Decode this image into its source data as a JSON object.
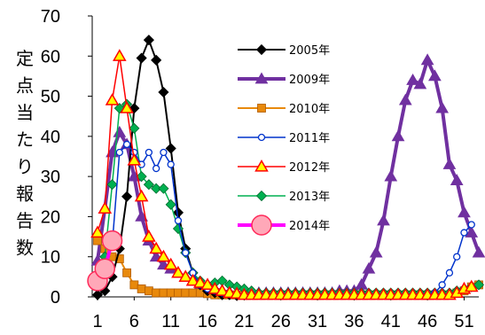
{
  "chart_data": {
    "type": "line",
    "title": "",
    "xlabel": "",
    "ylabel": "定点当たり報告数",
    "xlim": [
      1,
      53
    ],
    "ylim": [
      0,
      70
    ],
    "x_ticks": [
      1,
      6,
      11,
      16,
      21,
      26,
      31,
      36,
      41,
      46,
      51
    ],
    "y_ticks": [
      0,
      10,
      20,
      30,
      40,
      50,
      60,
      70
    ],
    "grid": false,
    "legend_position": "top-right",
    "series": [
      {
        "name": "2005年",
        "color": "#000000",
        "marker": "diamond",
        "line_width": 2,
        "x": [
          1,
          2,
          3,
          4,
          5,
          6,
          7,
          8,
          9,
          10,
          11,
          12,
          13,
          14,
          15,
          16,
          17,
          18,
          19,
          20
        ],
        "y": [
          0.5,
          1.5,
          5,
          12,
          25,
          47,
          59.5,
          64,
          59,
          51,
          37,
          21,
          12,
          6,
          3,
          1.5,
          1,
          0.5,
          0.5,
          0.3
        ]
      },
      {
        "name": "2009年",
        "color": "#7030a0",
        "marker": "triangle",
        "line_width": 4,
        "x": [
          1,
          2,
          3,
          4,
          5,
          6,
          7,
          8,
          9,
          10,
          11,
          12,
          13,
          14,
          15,
          16,
          17,
          18,
          19,
          20,
          21,
          22,
          23,
          24,
          25,
          26,
          27,
          28,
          29,
          30,
          31,
          32,
          33,
          34,
          35,
          36,
          37,
          38,
          39,
          40,
          41,
          42,
          43,
          44,
          45,
          46,
          47,
          48,
          49,
          50,
          51,
          52,
          53
        ],
        "y": [
          9,
          22,
          36,
          41,
          38,
          30,
          20,
          14,
          10,
          8,
          7,
          6,
          5,
          4,
          3,
          2.5,
          2,
          1.5,
          1.2,
          1,
          1,
          1,
          1,
          1,
          1,
          1,
          1,
          1,
          1,
          1,
          1,
          1,
          1,
          1.5,
          1.5,
          1.5,
          3,
          7,
          11,
          19,
          30,
          40,
          49,
          54,
          53,
          59,
          55,
          47,
          33,
          29,
          21,
          16,
          11
        ]
      },
      {
        "name": "2010年",
        "color": "#e8890c",
        "marker": "square",
        "line_width": 2,
        "x": [
          1,
          2,
          3,
          4,
          5,
          6,
          7,
          8,
          9,
          10,
          11,
          12,
          13,
          14,
          15,
          16,
          17,
          18,
          19,
          20,
          21,
          22,
          23,
          24,
          25,
          26,
          27,
          28,
          29,
          30,
          31,
          32,
          33,
          34,
          35,
          36,
          37,
          38,
          39,
          40,
          41,
          42,
          43,
          44,
          45,
          46,
          47,
          48,
          49,
          50,
          51,
          52,
          53
        ],
        "y": [
          14,
          12,
          10,
          9.5,
          6,
          3,
          2,
          1.5,
          1,
          1,
          1,
          1,
          1,
          1,
          1,
          0.8,
          0.5,
          0.5,
          0.5,
          0.5,
          0.5,
          0.5,
          0.5,
          0.5,
          0.5,
          0.5,
          0.5,
          0.5,
          0.5,
          0.5,
          0.5,
          0.5,
          0.5,
          0.5,
          0.5,
          0.5,
          0.5,
          0.5,
          0.5,
          0.5,
          0.5,
          0.5,
          0.5,
          0.5,
          0.5,
          0.5,
          0.5,
          0.5,
          0.5,
          1,
          1.5,
          2.5,
          3
        ]
      },
      {
        "name": "2011年",
        "color": "#0033cc",
        "marker": "circle",
        "line_width": 1.5,
        "x": [
          1,
          2,
          3,
          4,
          5,
          6,
          7,
          8,
          9,
          10,
          11,
          12,
          13,
          14,
          15,
          16,
          17,
          18,
          19,
          20,
          21,
          22,
          23,
          24,
          25,
          26,
          27,
          28,
          29,
          30,
          31,
          32,
          33,
          34,
          35,
          36,
          37,
          38,
          39,
          40,
          41,
          42,
          43,
          44,
          45,
          46,
          47,
          48,
          49,
          50,
          51,
          52,
          53
        ],
        "y": [
          3,
          7,
          13,
          36,
          38,
          36,
          33,
          36,
          32,
          36,
          33,
          19,
          11,
          6,
          3,
          2,
          1.5,
          1,
          1,
          0.5,
          0.5,
          0.5,
          0.5,
          0.5,
          0.5,
          0.5,
          0.5,
          0.5,
          0.5,
          0.5,
          0.5,
          0.5,
          0.5,
          0.5,
          0.5,
          0.5,
          0.5,
          0.5,
          0.5,
          0.5,
          0.5,
          0.5,
          0.5,
          0.5,
          0.5,
          0.5,
          1,
          3,
          6,
          10,
          16,
          18,
          null
        ]
      },
      {
        "name": "2012年",
        "color": "#ff0000",
        "marker": "triangle-open",
        "line_width": 1.5,
        "x": [
          1,
          2,
          3,
          4,
          5,
          6,
          7,
          8,
          9,
          10,
          11,
          12,
          13,
          14,
          15,
          16,
          17,
          18,
          19,
          20,
          21,
          22,
          23,
          24,
          25,
          26,
          27,
          28,
          29,
          30,
          31,
          32,
          33,
          34,
          35,
          36,
          37,
          38,
          39,
          40,
          41,
          42,
          43,
          44,
          45,
          46,
          47,
          48,
          49,
          50,
          51,
          52,
          53
        ],
        "y": [
          16,
          22,
          49,
          60,
          47,
          34,
          25,
          15,
          12,
          10,
          8,
          6,
          5,
          4,
          3.5,
          3,
          2,
          1.5,
          1,
          0.8,
          0.5,
          0.5,
          0.5,
          0.5,
          0.5,
          0.5,
          0.5,
          0.5,
          0.5,
          0.5,
          0.5,
          0.5,
          0.5,
          0.5,
          0.5,
          0.5,
          0.5,
          0.5,
          0.5,
          0.5,
          0.5,
          0.5,
          0.5,
          0.5,
          0.5,
          0.5,
          0.5,
          0.5,
          0.5,
          1,
          2,
          2.5,
          null
        ]
      },
      {
        "name": "2013年",
        "color": "#00b050",
        "marker": "diamond",
        "line_width": 1.5,
        "x": [
          1,
          2,
          3,
          4,
          5,
          6,
          7,
          8,
          9,
          10,
          11,
          12,
          13,
          14,
          15,
          16,
          17,
          18,
          19,
          20,
          21,
          22,
          23,
          24,
          25,
          26,
          27,
          28,
          29,
          30,
          31,
          32,
          33,
          34,
          35,
          36,
          37,
          38,
          39,
          40,
          41,
          42,
          43,
          44,
          45,
          46,
          47,
          48,
          49,
          50,
          51,
          52,
          53
        ],
        "y": [
          5,
          10,
          28,
          47,
          48,
          42,
          30,
          28,
          27,
          27,
          23,
          17,
          11,
          6,
          4,
          3,
          3.5,
          4,
          3,
          2.5,
          2,
          1.5,
          1,
          1,
          1,
          1,
          1,
          1,
          1,
          1,
          1,
          1,
          1,
          1,
          1,
          1,
          1,
          1,
          1,
          1,
          1,
          1,
          1,
          1,
          1,
          1,
          1,
          1,
          1,
          1.5,
          2,
          2.5,
          3
        ]
      },
      {
        "name": "2014年",
        "color": "#ff00ff",
        "marker": "circle-large",
        "line_width": 4,
        "x": [
          1,
          2,
          3
        ],
        "y": [
          4,
          7,
          14
        ]
      }
    ]
  }
}
